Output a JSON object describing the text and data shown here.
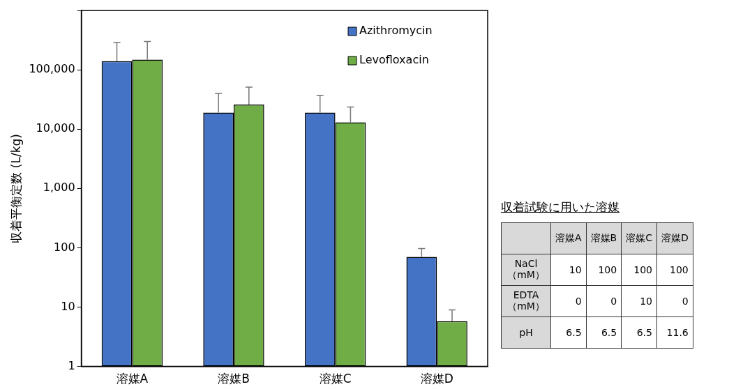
{
  "chart_data": [
    {
      "type": "bar",
      "ylabel": "収着平衡定数 (L/kg)",
      "categories": [
        "溶媒A",
        "溶媒B",
        "溶媒C",
        "溶媒D"
      ],
      "series": [
        {
          "name": "Azithromycin",
          "color": "#4472c4",
          "values": [
            140000,
            19000,
            19000,
            70
          ],
          "errors": [
            [
              140000,
              290000
            ],
            [
              19000,
              40000
            ],
            [
              19000,
              37000
            ],
            [
              70,
              97
            ]
          ]
        },
        {
          "name": "Levofloxacin",
          "color": "#70ad47",
          "values": [
            148000,
            26000,
            13000,
            5.8
          ],
          "errors": [
            [
              148000,
              300000
            ],
            [
              26000,
              51000
            ],
            [
              13000,
              23500
            ],
            [
              5.8,
              9
            ]
          ]
        }
      ],
      "log": "y",
      "ylim": [
        1,
        1000000
      ],
      "yticks": [
        1,
        10,
        100,
        {
          "value": 1000,
          "label": "1,000"
        },
        {
          "value": 10000,
          "label": "10,000"
        },
        {
          "value": 100000,
          "label": "100,000"
        },
        {
          "value": 1000000,
          "label": null
        }
      ],
      "grid": false,
      "legend": "top right"
    },
    {
      "type": "other",
      "title": "収着試験に用いた溶媒",
      "categories": [
        "溶媒A",
        "溶媒B",
        "溶媒C",
        "溶媒D"
      ],
      "y_categories": [
        "NaCl\n（mM）",
        "EDTA\n（mM）",
        "pH"
      ],
      "cell_labels": [
        [
          "10",
          "100",
          "100",
          "100"
        ],
        [
          "0",
          "0",
          "10",
          "0"
        ],
        [
          "6.5",
          "6.5",
          "6.5",
          "11.6"
        ]
      ]
    }
  ]
}
